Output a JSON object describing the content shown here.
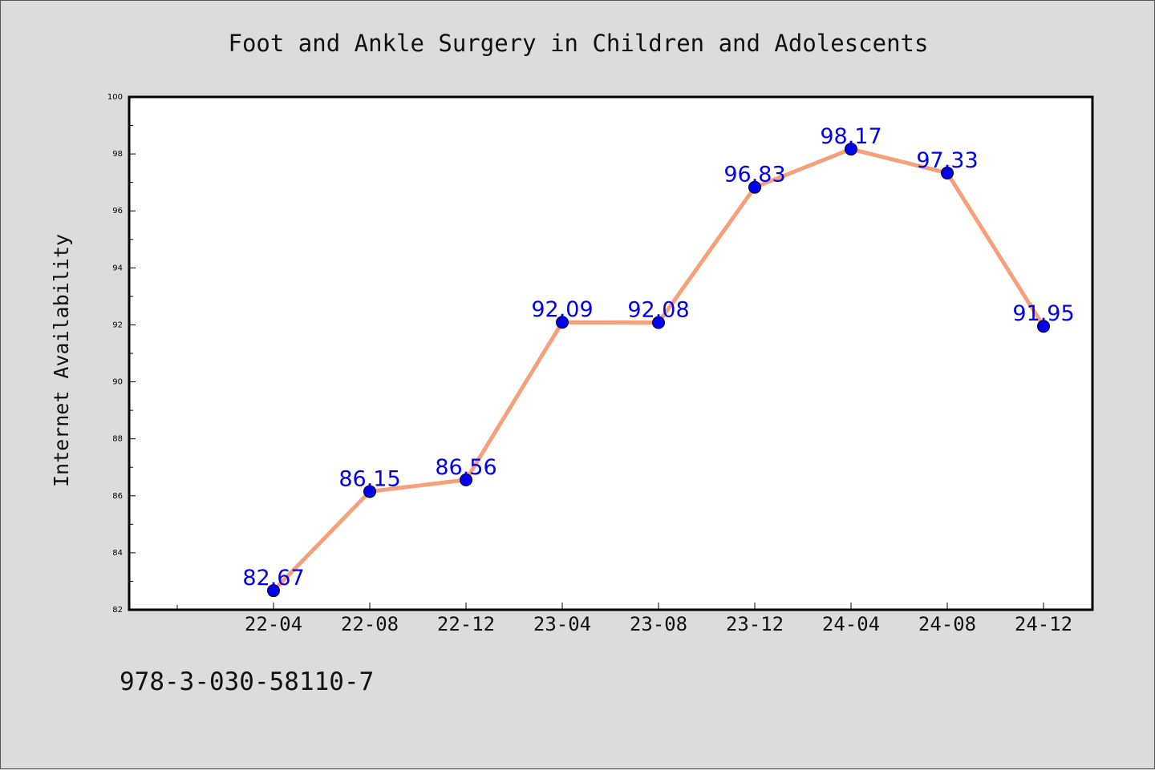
{
  "chart_data": {
    "type": "line",
    "title": "Foot and Ankle Surgery in Children and Adolescents",
    "xlabel": "",
    "ylabel": "Internet Availability",
    "categories": [
      "22-04",
      "22-08",
      "22-12",
      "23-04",
      "23-08",
      "23-12",
      "24-04",
      "24-08",
      "24-12"
    ],
    "series": [
      {
        "values": [
          82.67,
          86.15,
          86.56,
          92.09,
          92.08,
          96.83,
          98.17,
          97.33,
          91.95
        ],
        "labels": [
          "82.67",
          "86.15",
          "86.56",
          "92.09",
          "92.08",
          "96.83",
          "98.17",
          "97.33",
          "91.95"
        ],
        "line_color": "#f5a07a",
        "marker_color": "#0000ee"
      }
    ],
    "y_ticks": [
      "82",
      "84",
      "86",
      "88",
      "90",
      "92",
      "94",
      "96",
      "98",
      "100"
    ],
    "ylim": [
      82,
      100
    ],
    "grid": false,
    "legend": "none",
    "data_label_color": "#0000ee"
  },
  "footer": {
    "code": "978-3-030-58110-7"
  }
}
